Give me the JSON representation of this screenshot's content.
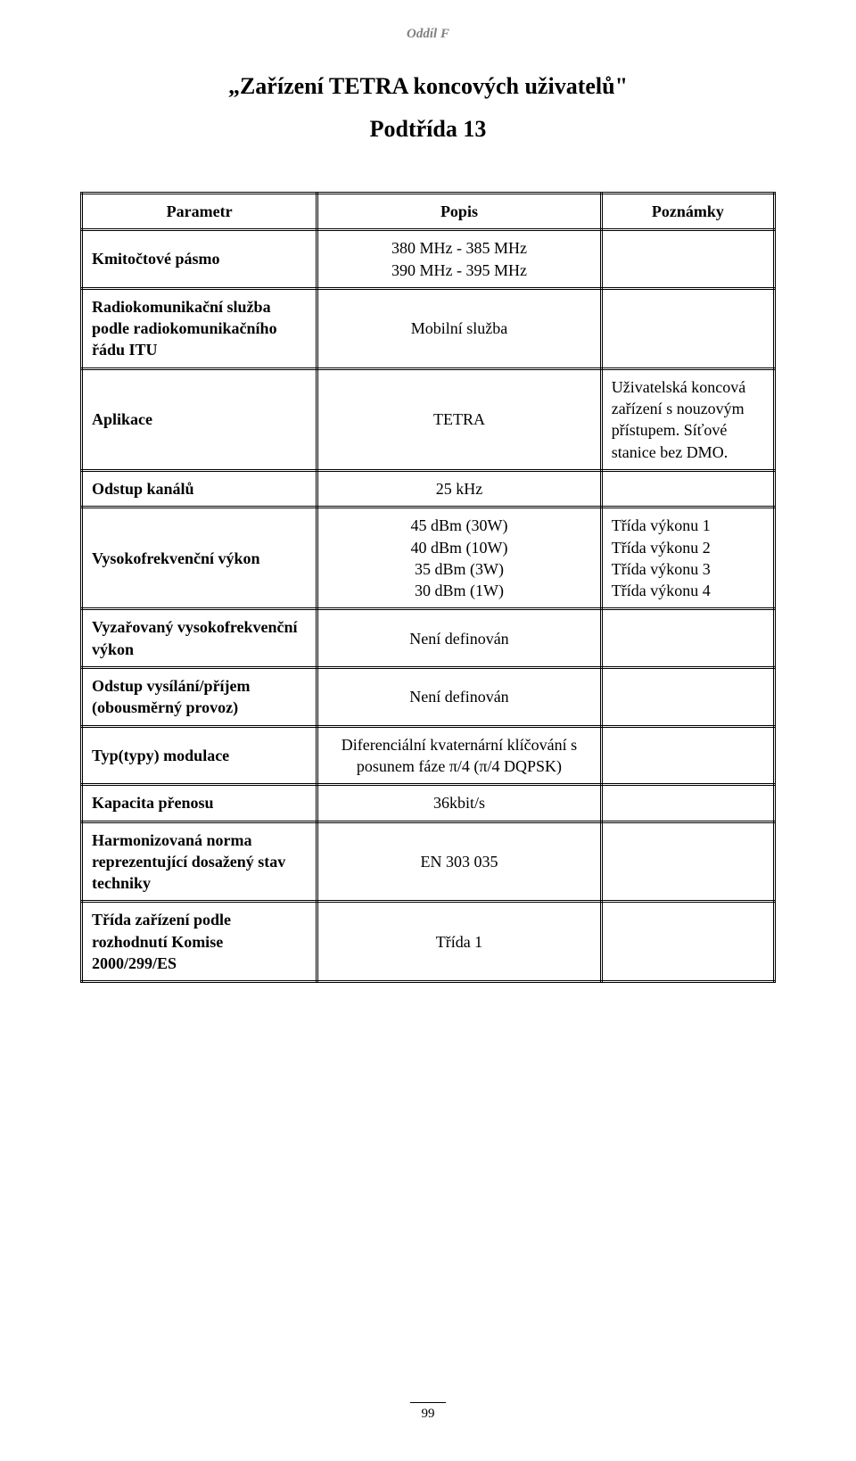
{
  "header": {
    "section": "Oddíl F",
    "title": "„Zařízení TETRA koncových uživatelů\"",
    "subtitle": "Podtřída 13"
  },
  "table": {
    "columns": [
      "Parametr",
      "Popis",
      "Poznámky"
    ],
    "rows": [
      {
        "label": "Kmitočtové pásmo",
        "value": "380 MHz - 385 MHz\n390 MHz - 395 MHz",
        "note": ""
      },
      {
        "label": "Radiokomunikační služba podle radiokomunikačního řádu ITU",
        "value": "Mobilní služba",
        "note": ""
      },
      {
        "label": "Aplikace",
        "value": "TETRA",
        "note": "Uživatelská koncová zařízení s nouzovým přístupem. Síťové stanice bez DMO."
      },
      {
        "label": "Odstup kanálů",
        "value": "25 kHz",
        "note": ""
      },
      {
        "label": "Vysokofrekvenční výkon",
        "value": "45 dBm (30W)\n40 dBm (10W)\n35 dBm (3W)\n30 dBm (1W)",
        "note": "Třída výkonu 1\nTřída výkonu 2\nTřída výkonu 3\nTřída výkonu 4"
      },
      {
        "label": "Vyzařovaný vysokofrekvenční výkon",
        "value": "Není definován",
        "note": ""
      },
      {
        "label": "Odstup vysílání/příjem (obousměrný provoz)",
        "value": "Není definován",
        "note": ""
      },
      {
        "label": "Typ(typy) modulace",
        "value": "Diferenciální kvaternární klíčování s posunem fáze π/4 (π/4 DQPSK)",
        "note": ""
      },
      {
        "label": "Kapacita přenosu",
        "value": "36kbit/s",
        "note": ""
      },
      {
        "label": "Harmonizovaná norma reprezentující dosažený stav techniky",
        "value": "EN 303 035",
        "note": ""
      },
      {
        "label": "Třída zařízení podle rozhodnutí Komise 2000/299/ES",
        "value": "Třída 1",
        "note": ""
      }
    ]
  },
  "footer": {
    "page": "99"
  },
  "style": {
    "colors": {
      "background": "#ffffff",
      "text": "#000000",
      "muted": "#808080",
      "border": "#000000"
    },
    "fonts": {
      "body": "Times New Roman",
      "title_size": 26,
      "body_size": 18,
      "header_size": 15
    },
    "table": {
      "border_style": "double",
      "border_width": 3,
      "col_widths_pct": [
        34,
        41,
        25
      ]
    }
  }
}
